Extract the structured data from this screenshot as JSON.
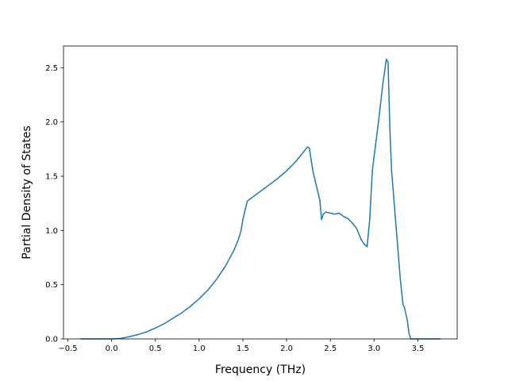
{
  "chart_data": {
    "type": "line",
    "title": "",
    "xlabel": "Frequency (THz)",
    "ylabel": "Partial Density of States",
    "xlim": [
      -0.55,
      3.95
    ],
    "ylim": [
      0.0,
      2.7
    ],
    "xticks": [
      -0.5,
      0.0,
      0.5,
      1.0,
      1.5,
      2.0,
      2.5,
      3.0,
      3.5
    ],
    "xtick_labels": [
      "−0.5",
      "0.0",
      "0.5",
      "1.0",
      "1.5",
      "2.0",
      "2.5",
      "3.0",
      "3.5"
    ],
    "yticks": [
      0.0,
      0.5,
      1.0,
      1.5,
      2.0,
      2.5
    ],
    "ytick_labels": [
      "0.0",
      "0.5",
      "1.0",
      "1.5",
      "2.0",
      "2.5"
    ],
    "grid": false,
    "legend": "none",
    "series": [
      {
        "color": "#1f77b4",
        "x": [
          -0.35,
          -0.2,
          0.0,
          0.1,
          0.2,
          0.3,
          0.4,
          0.5,
          0.6,
          0.7,
          0.8,
          0.9,
          1.0,
          1.1,
          1.2,
          1.3,
          1.4,
          1.45,
          1.48,
          1.5,
          1.55,
          1.6,
          1.7,
          1.8,
          1.9,
          2.0,
          2.1,
          2.15,
          2.2,
          2.24,
          2.26,
          2.3,
          2.35,
          2.38,
          2.4,
          2.42,
          2.45,
          2.5,
          2.55,
          2.6,
          2.65,
          2.7,
          2.75,
          2.8,
          2.85,
          2.88,
          2.92,
          2.95,
          2.98,
          3.0,
          3.05,
          3.1,
          3.14,
          3.16,
          3.18,
          3.2,
          3.25,
          3.3,
          3.33,
          3.35,
          3.38,
          3.4,
          3.42,
          3.45,
          3.5,
          3.6,
          3.75
        ],
        "y": [
          0.0,
          0.0,
          0.0,
          0.005,
          0.02,
          0.04,
          0.065,
          0.1,
          0.14,
          0.19,
          0.24,
          0.3,
          0.37,
          0.45,
          0.55,
          0.67,
          0.82,
          0.92,
          1.0,
          1.1,
          1.27,
          1.3,
          1.36,
          1.42,
          1.48,
          1.55,
          1.63,
          1.68,
          1.73,
          1.77,
          1.76,
          1.55,
          1.38,
          1.28,
          1.1,
          1.15,
          1.17,
          1.16,
          1.15,
          1.16,
          1.13,
          1.11,
          1.07,
          1.02,
          0.92,
          0.88,
          0.85,
          1.1,
          1.55,
          1.68,
          2.0,
          2.35,
          2.58,
          2.55,
          1.95,
          1.55,
          1.05,
          0.55,
          0.32,
          0.28,
          0.17,
          0.05,
          0.0,
          0.0,
          0.0,
          0.0,
          0.0
        ]
      }
    ]
  }
}
